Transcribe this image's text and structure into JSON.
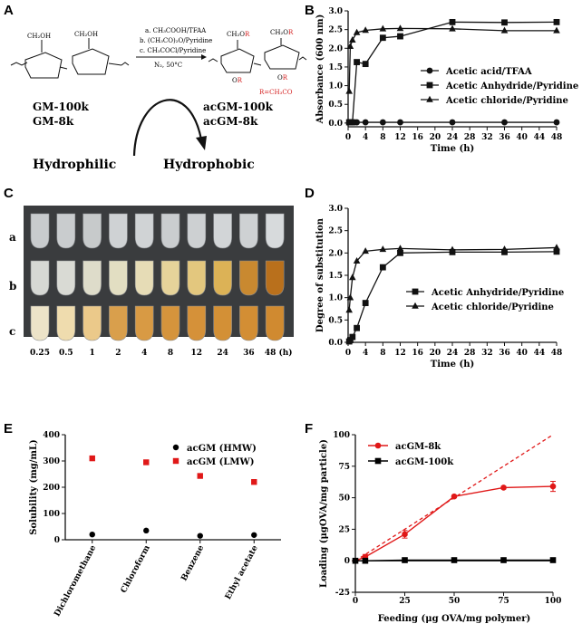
{
  "panel_letters": [
    "A",
    "B",
    "C",
    "D",
    "E",
    "F"
  ],
  "panel_a": {
    "reagents": [
      "a. CH₃COOH/TFAA",
      "b. (CH₃CO)₂O/Pyridine",
      "c. CH₃COCl/Pyridine"
    ],
    "condition": "N₂, 50°C",
    "r_group": "R=CH₃CO",
    "left_labels": [
      "GM-100k",
      "GM-8k"
    ],
    "right_labels": [
      "acGM-100k",
      "acGM-8k"
    ],
    "left_property": "Hydrophilic",
    "right_property": "Hydrophobic"
  },
  "panel_c": {
    "row_labels": [
      "a",
      "b",
      "c"
    ],
    "time_labels": [
      "0.25",
      "0.5",
      "1",
      "2",
      "4",
      "8",
      "12",
      "24",
      "36",
      "48 (h)"
    ],
    "tube_colors": {
      "a": [
        "#c8cbcd",
        "#c9ccce",
        "#c7cacb",
        "#cfd2d4",
        "#d0d3d5",
        "#cacdcf",
        "#cdd0d2",
        "#d2d5d7",
        "#ced1d3",
        "#d7dadc"
      ],
      "b": [
        "#d6d8d4",
        "#d9dad4",
        "#dedcca",
        "#e2dec2",
        "#e6dcb6",
        "#e6d39a",
        "#e3c77e",
        "#dcb256",
        "#c98930",
        "#b9701c"
      ],
      "c": [
        "#ece3c8",
        "#efdcae",
        "#ebc98a",
        "#d99f4c",
        "#d89a44",
        "#d5943c",
        "#d59139",
        "#d39036",
        "#d38e34",
        "#d08a30"
      ]
    }
  },
  "chart_data": [
    {
      "panel": "B",
      "type": "line",
      "xlabel": "Time (h)",
      "ylabel": "Absorbance (600 nm)",
      "xlim": [
        0,
        48
      ],
      "ylim": [
        -0.1,
        3.0
      ],
      "xticks": [
        0,
        4,
        8,
        12,
        16,
        20,
        24,
        28,
        32,
        36,
        40,
        44,
        48
      ],
      "yticks": [
        0.0,
        0.5,
        1.0,
        1.5,
        2.0,
        2.5,
        3.0
      ],
      "legend_position": "right",
      "series": [
        {
          "name": "Acetic acid/TFAA",
          "marker": "circle",
          "x": [
            0.25,
            0.5,
            1,
            2,
            4,
            8,
            12,
            24,
            36,
            48
          ],
          "y": [
            0.02,
            0.02,
            0.02,
            0.02,
            0.02,
            0.02,
            0.02,
            0.02,
            0.02,
            0.02
          ]
        },
        {
          "name": "Acetic Anhydride/Pyridine",
          "marker": "square",
          "x": [
            0.25,
            0.5,
            1,
            2,
            4,
            8,
            12,
            24,
            36,
            48
          ],
          "y": [
            0.02,
            0.02,
            0.02,
            1.63,
            1.58,
            2.28,
            2.32,
            2.7,
            2.69,
            2.7
          ]
        },
        {
          "name": "Acetic chloride/Pyridine",
          "marker": "triangle",
          "x": [
            0.25,
            0.5,
            1,
            2,
            4,
            8,
            12,
            24,
            36,
            48
          ],
          "y": [
            0.85,
            2.05,
            2.22,
            2.42,
            2.48,
            2.52,
            2.53,
            2.52,
            2.47,
            2.47
          ]
        }
      ]
    },
    {
      "panel": "D",
      "type": "line",
      "xlabel": "Time (h)",
      "ylabel": "Degree of substitution",
      "xlim": [
        0,
        48
      ],
      "ylim": [
        0,
        3.0
      ],
      "xticks": [
        0,
        4,
        8,
        12,
        16,
        20,
        24,
        28,
        32,
        36,
        40,
        44,
        48
      ],
      "yticks": [
        0.0,
        0.5,
        1.0,
        1.5,
        2.0,
        2.5,
        3.0
      ],
      "legend_position": "bottom-right",
      "series": [
        {
          "name": "Acetic Anhydride/Pyridine",
          "marker": "square",
          "x": [
            0.25,
            0.5,
            1,
            2,
            4,
            8,
            12,
            24,
            36,
            48
          ],
          "y": [
            0.02,
            0.05,
            0.12,
            0.32,
            0.88,
            1.68,
            2.0,
            2.02,
            2.02,
            2.03
          ]
        },
        {
          "name": "Acetic chloride/Pyridine",
          "marker": "triangle",
          "x": [
            0.25,
            0.5,
            1,
            2,
            4,
            8,
            12,
            24,
            36,
            48
          ],
          "y": [
            0.72,
            1.0,
            1.45,
            1.82,
            2.04,
            2.08,
            2.1,
            2.07,
            2.08,
            2.12
          ]
        }
      ]
    },
    {
      "panel": "E",
      "type": "scatter",
      "xlabel": "",
      "ylabel": "Solubility (mg/mL)",
      "categories": [
        "Dichloromethane",
        "Chloroform",
        "Benzene",
        "Ethyl acetate"
      ],
      "ylim": [
        0,
        400
      ],
      "yticks": [
        0,
        100,
        200,
        300,
        400
      ],
      "legend_position": "top-right",
      "series": [
        {
          "name": "acGM (HMW)",
          "marker": "circle",
          "color": "#000000",
          "values": [
            20,
            35,
            15,
            18
          ]
        },
        {
          "name": "acGM (LMW)",
          "marker": "square",
          "color": "#e01818",
          "values": [
            310,
            295,
            243,
            220
          ]
        }
      ]
    },
    {
      "panel": "F",
      "type": "line",
      "xlabel": "Feeding (μg OVA/mg polymer)",
      "ylabel": "Loading (μgOVA/mg particle)",
      "xlim": [
        0,
        100
      ],
      "ylim": [
        -25,
        100
      ],
      "xticks": [
        0,
        25,
        50,
        75,
        100
      ],
      "yticks": [
        -25,
        0,
        25,
        50,
        75,
        100
      ],
      "legend_position": "top-left",
      "reference_line": {
        "style": "dashed",
        "color": "#e01818",
        "x": [
          0,
          100
        ],
        "y": [
          0,
          100
        ]
      },
      "series": [
        {
          "name": "acGM-8k",
          "marker": "circle",
          "color": "#e01818",
          "x": [
            0,
            5,
            25,
            50,
            75,
            100
          ],
          "y": [
            0,
            3,
            21,
            51,
            58,
            59
          ],
          "err": [
            0,
            2,
            3,
            1,
            1,
            4
          ]
        },
        {
          "name": "acGM-100k",
          "marker": "square",
          "color": "#000000",
          "x": [
            0,
            5,
            25,
            50,
            75,
            100
          ],
          "y": [
            0,
            0,
            0.5,
            0.5,
            0.5,
            0.5
          ],
          "err": [
            0,
            0,
            0,
            0,
            0,
            0
          ]
        }
      ]
    }
  ]
}
